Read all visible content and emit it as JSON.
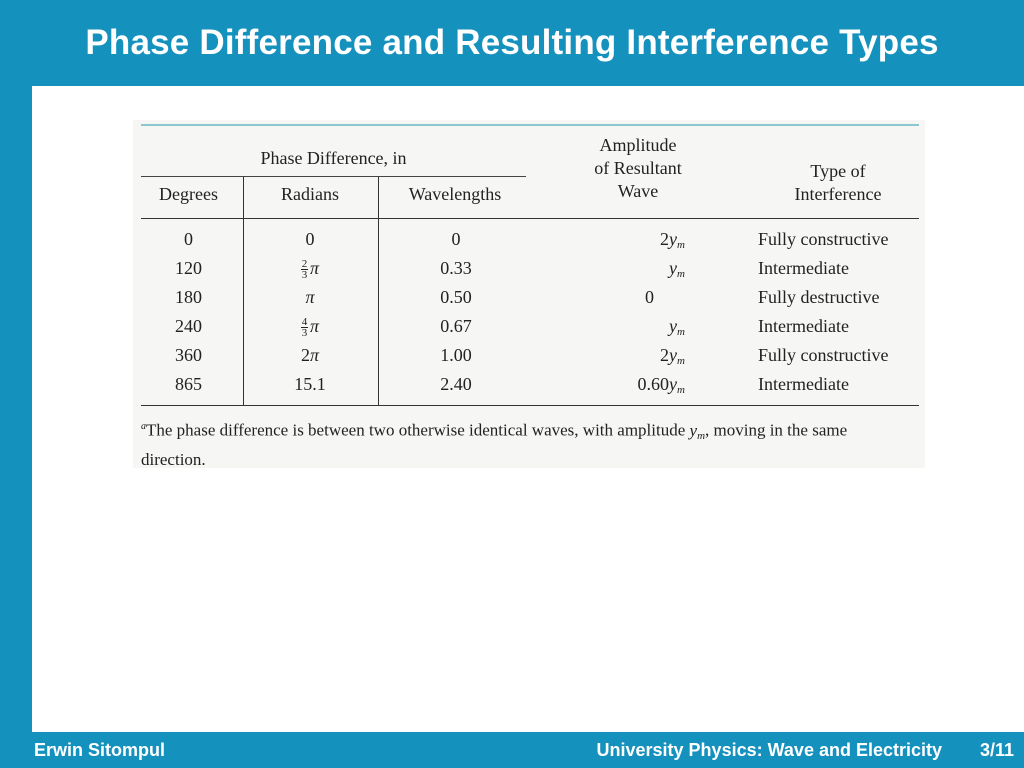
{
  "slide": {
    "title": "Phase Difference and Resulting Interference Types",
    "footer_author": "Erwin Sitompul",
    "footer_course": "University Physics: Wave and Electricity",
    "page_number": "3/11"
  },
  "table": {
    "group_header": "Phase Difference, in",
    "headers": {
      "degrees": "Degrees",
      "radians": "Radians",
      "wavelengths": "Wavelengths",
      "amplitude_l1": "Amplitude",
      "amplitude_l2": "of Resultant",
      "amplitude_l3": "Wave",
      "type_l1": "Type of",
      "type_l2": "Interference"
    },
    "rows": [
      {
        "degrees": "0",
        "radians": "0",
        "wavelengths": "0",
        "amplitude": "2y_m",
        "type": "Fully constructive"
      },
      {
        "degrees": "120",
        "radians": "2/3 π",
        "wavelengths": "0.33",
        "amplitude": "y_m",
        "type": "Intermediate"
      },
      {
        "degrees": "180",
        "radians": "π",
        "wavelengths": "0.50",
        "amplitude": "0",
        "type": "Fully destructive"
      },
      {
        "degrees": "240",
        "radians": "4/3 π",
        "wavelengths": "0.67",
        "amplitude": "y_m",
        "type": "Intermediate"
      },
      {
        "degrees": "360",
        "radians": "2π",
        "wavelengths": "1.00",
        "amplitude": "2y_m",
        "type": "Fully constructive"
      },
      {
        "degrees": "865",
        "radians": "15.1",
        "wavelengths": "2.40",
        "amplitude": "0.60y_m",
        "type": "Intermediate"
      }
    ],
    "footnote": {
      "marker": "a",
      "text_before": "The phase difference is between two otherwise identical waves, with amplitude ",
      "symbol": "y_m",
      "text_after": ", moving in the same direction."
    }
  },
  "colors": {
    "frame": "#1591bd",
    "content_bg": "#ffffff",
    "title_text": "#ffffff",
    "table_top_rule": "#8cc7cf"
  }
}
